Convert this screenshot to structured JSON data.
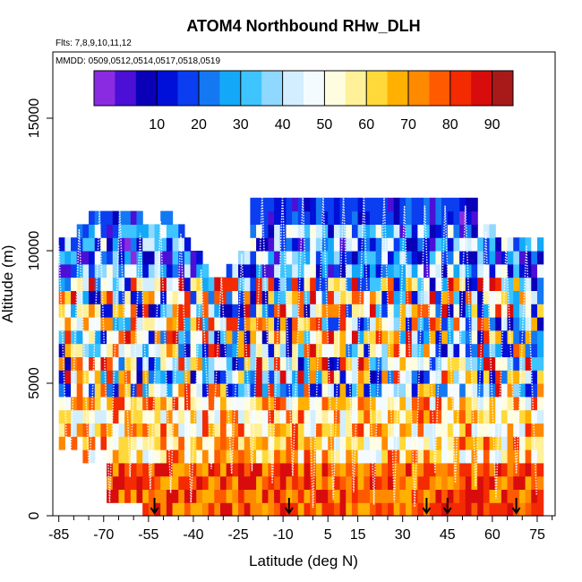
{
  "chart_data": {
    "type": "heatmap",
    "title": "ATOM4 Northbound RHw_DLH",
    "flights_label": "Flts: 7,8,9,10,11,12",
    "dates_label": "MMDD: 0509,0512,0514,0517,0518,0519",
    "xlabel": "Latitude (deg N)",
    "ylabel": "Altitude (m)",
    "xlim": [
      -87,
      81
    ],
    "ylim": [
      0,
      17500
    ],
    "x_ticks": [
      -85,
      -70,
      -55,
      -40,
      -25,
      -10,
      5,
      15,
      30,
      45,
      60,
      75
    ],
    "x_tick_labels": [
      "-85",
      "-70",
      "-55",
      "-40",
      "-25",
      "-10",
      "5",
      "15",
      "30",
      "45",
      "60",
      "75"
    ],
    "x_minor_ticks": [
      -80,
      -75,
      -65,
      -60,
      -50,
      -45,
      -35,
      -30,
      -20,
      -15,
      -5,
      0,
      10,
      20,
      25,
      35,
      40,
      50,
      55,
      65,
      70,
      80
    ],
    "y_ticks": [
      0,
      5000,
      10000,
      15000
    ],
    "y_tick_labels": [
      "0",
      "5000",
      "10000",
      "15000"
    ],
    "colorbar": {
      "min": 0,
      "max": 100,
      "ticks": [
        10,
        20,
        30,
        40,
        50,
        60,
        70,
        80,
        90
      ],
      "tick_labels": [
        "10",
        "20",
        "30",
        "40",
        "50",
        "60",
        "70",
        "80",
        "90"
      ],
      "colors": [
        "#8a2be2",
        "#4b0fd6",
        "#0a00b8",
        "#0010d8",
        "#0a3ef0",
        "#1478f2",
        "#14a8f8",
        "#3ec4ff",
        "#8fd8ff",
        "#d2eeff",
        "#f4fbff",
        "#fffde0",
        "#fff09a",
        "#ffd93a",
        "#ffb000",
        "#ff8a00",
        "#ff5a00",
        "#f42a00",
        "#d80c0c",
        "#a81a1a"
      ]
    },
    "profile_markers_lat": [
      -53,
      -8,
      38,
      45,
      68
    ],
    "altitude_bins_m": [
      500,
      1000,
      1500,
      2000,
      2500,
      3000,
      3500,
      4000,
      4500,
      5000,
      5500,
      6000,
      6500,
      7000,
      7500,
      8000,
      8500,
      9000,
      9500,
      10000,
      10500,
      11000,
      11500,
      12000
    ],
    "latitude_bin_width_deg": 2,
    "rh_percent_profiles": [
      {
        "alt_range": [
          0,
          2000
        ],
        "value_range": [
          55,
          95
        ]
      },
      {
        "alt_range": [
          2000,
          5000
        ],
        "value_range": [
          20,
          90
        ]
      },
      {
        "alt_range": [
          5000,
          9000
        ],
        "value_range": [
          5,
          95
        ]
      },
      {
        "alt_range": [
          9000,
          12500
        ],
        "value_range": [
          0,
          70
        ]
      }
    ]
  }
}
